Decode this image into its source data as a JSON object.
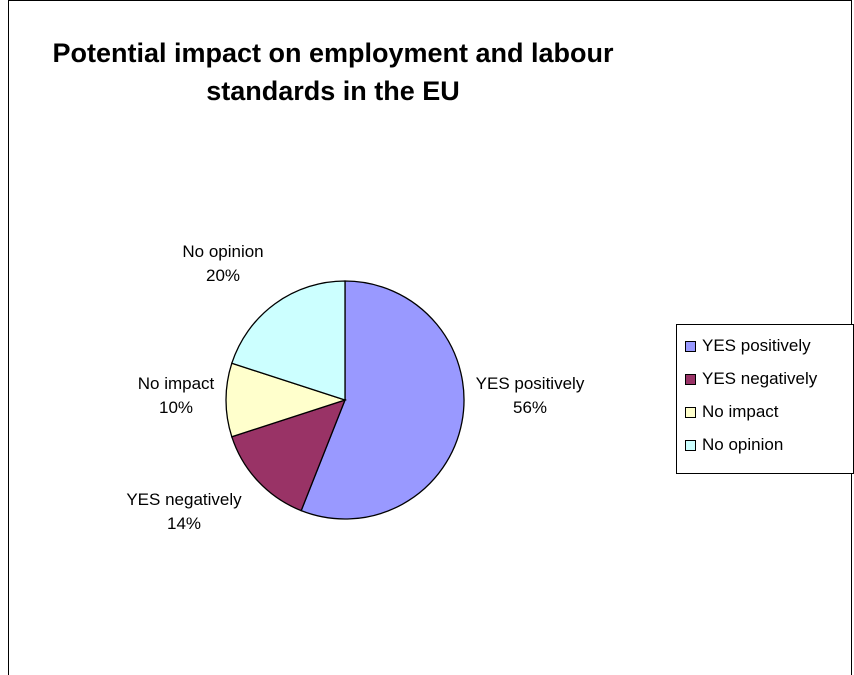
{
  "chart_data": {
    "type": "pie",
    "title": "Potential impact on employment and labour standards in the EU",
    "legend_position": "right",
    "slices": [
      {
        "label": "YES positively",
        "value": 56,
        "display": "56%",
        "color": "#9999ff"
      },
      {
        "label": "YES negatively",
        "value": 14,
        "display": "14%",
        "color": "#993366"
      },
      {
        "label": "No impact",
        "value": 10,
        "display": "10%",
        "color": "#ffffcc"
      },
      {
        "label": "No opinion",
        "value": 20,
        "display": "20%",
        "color": "#ccffff"
      }
    ]
  }
}
